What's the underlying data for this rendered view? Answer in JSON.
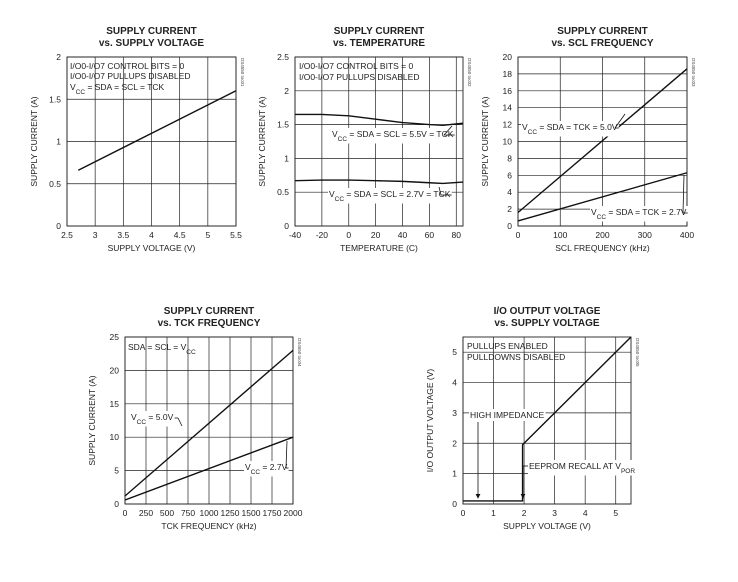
{
  "chart_data": [
    {
      "type": "line",
      "title": "SUPPLY CURRENT",
      "subtitle": "vs. SUPPLY VOLTAGE",
      "xlabel": "SUPPLY VOLTAGE (V)",
      "ylabel": "SUPPLY CURRENT (A)",
      "xlim": [
        2.5,
        5.5
      ],
      "ylim": [
        0,
        2
      ],
      "xticks": [
        "2.5",
        "3",
        "3.5",
        "4",
        "4.5",
        "5",
        "5.5"
      ],
      "yticks": [
        "0",
        "0.5",
        "1",
        "1.5",
        "2"
      ],
      "grid": true,
      "code": "DS4550 toc01",
      "notes": [
        "I/O0-I/O7 CONTROL BITS = 0",
        "I/O0-I/O7 PULLUPS DISABLED",
        "V_CC = SDA = SCL = TCK"
      ],
      "series": [
        {
          "x": [
            2.7,
            5.5
          ],
          "y": [
            0.66,
            1.6
          ]
        }
      ]
    },
    {
      "type": "line",
      "title": "SUPPLY CURRENT",
      "subtitle": "vs. TEMPERATURE",
      "xlabel": "TEMPERATURE (C)",
      "ylabel": "SUPPLY CURRENT (A)",
      "xlim": [
        -40,
        85
      ],
      "ylim": [
        0,
        2.5
      ],
      "xticks": [
        "-40",
        "-20",
        "0",
        "20",
        "40",
        "60",
        "80"
      ],
      "yticks": [
        "0",
        "0.5",
        "1",
        "1.5",
        "2",
        "2.5"
      ],
      "grid": true,
      "code": "DS4550 toc02",
      "notes": [
        "I/O0-I/O7 CONTROL BITS = 0",
        "I/O0-I/O7 PULLUPS DISABLED"
      ],
      "series": [
        {
          "name": "V_CC = SDA = SCL = 5.5V = TCK",
          "x": [
            -40,
            -20,
            0,
            20,
            40,
            60,
            70,
            85
          ],
          "y": [
            1.65,
            1.65,
            1.63,
            1.58,
            1.53,
            1.5,
            1.49,
            1.52
          ]
        },
        {
          "name": "V_CC = SDA = SCL = 2.7V = TCK",
          "x": [
            -40,
            -20,
            0,
            20,
            40,
            60,
            70,
            85
          ],
          "y": [
            0.67,
            0.68,
            0.68,
            0.67,
            0.66,
            0.64,
            0.63,
            0.65
          ]
        }
      ]
    },
    {
      "type": "line",
      "title": "SUPPLY CURRENT",
      "subtitle": "vs. SCL FREQUENCY",
      "xlabel": "SCL FREQUENCY (kHz)",
      "ylabel": "SUPPLY CURRENT (A)",
      "xlim": [
        0,
        400
      ],
      "ylim": [
        0,
        20
      ],
      "xticks": [
        "0",
        "100",
        "200",
        "300",
        "400"
      ],
      "yticks": [
        "0",
        "2",
        "4",
        "6",
        "8",
        "10",
        "12",
        "14",
        "16",
        "18",
        "20"
      ],
      "grid": true,
      "code": "DS4550 toc03",
      "series": [
        {
          "name": "V_CC = SDA = TCK = 5.0V",
          "x": [
            0,
            400
          ],
          "y": [
            1.6,
            18.6
          ]
        },
        {
          "name": "V_CC = SDA = TCK = 2.7V",
          "x": [
            0,
            400
          ],
          "y": [
            0.6,
            6.3
          ]
        }
      ]
    },
    {
      "type": "line",
      "title": "SUPPLY CURRENT",
      "subtitle": "vs. TCK FREQUENCY",
      "xlabel": "TCK FREQUENCY (kHz)",
      "ylabel": "SUPPLY CURRENT (A)",
      "xlim": [
        0,
        2000
      ],
      "ylim": [
        0,
        25
      ],
      "xticks": [
        "0",
        "250",
        "500",
        "750",
        "1000",
        "1250",
        "1500",
        "1750",
        "2000"
      ],
      "yticks": [
        "0",
        "5",
        "10",
        "15",
        "20",
        "25"
      ],
      "grid": true,
      "code": "DS4550 toc04",
      "notes": [
        "SDA = SCL = V_CC"
      ],
      "series": [
        {
          "name": "V_CC = 5.0V",
          "x": [
            0,
            2000
          ],
          "y": [
            1.2,
            23.0
          ]
        },
        {
          "name": "V_CC = 2.7V",
          "x": [
            0,
            2000
          ],
          "y": [
            0.6,
            10.0
          ]
        }
      ]
    },
    {
      "type": "line",
      "title": "I/O OUTPUT VOLTAGE",
      "subtitle": "vs. SUPPLY VOLTAGE",
      "xlabel": "SUPPLY VOLTAGE (V)",
      "ylabel": "I/O OUTPUT VOLTAGE (V)",
      "xlim": [
        0,
        5.5
      ],
      "ylim": [
        0,
        5.5
      ],
      "xticks": [
        "0",
        "1",
        "2",
        "3",
        "4",
        "5"
      ],
      "yticks": [
        "0",
        "1",
        "2",
        "3",
        "4",
        "5"
      ],
      "grid": true,
      "code": "DS4550 toc05",
      "notes": [
        "PULLUPS ENABLED",
        "PULLDOWNS DISABLED",
        "HIGH IMPEDANCE",
        "EEPROM RECALL AT V_POR"
      ],
      "series": [
        {
          "x": [
            0,
            1.95,
            1.95,
            2.0,
            5.5
          ],
          "y": [
            0.1,
            0.1,
            1.95,
            2.0,
            5.5
          ]
        }
      ]
    }
  ]
}
